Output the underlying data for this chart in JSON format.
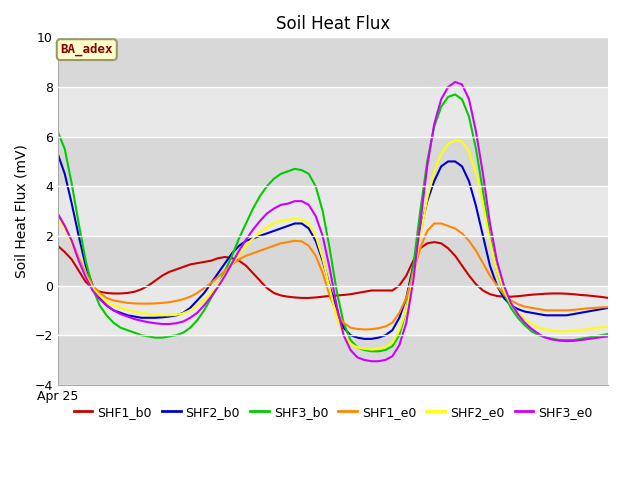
{
  "title": "Soil Heat Flux",
  "ylabel": "Soil Heat Flux (mV)",
  "xlabel": "Apr 25",
  "ylim": [
    -4,
    10
  ],
  "annotation_text": "BA_adex",
  "annotation_bg": "#ffffcc",
  "annotation_border": "#999966",
  "series": {
    "SHF1_b0": {
      "color": "#cc0000",
      "values": [
        1.6,
        1.35,
        1.05,
        0.6,
        0.15,
        -0.1,
        -0.25,
        -0.3,
        -0.32,
        -0.32,
        -0.3,
        -0.25,
        -0.15,
        0.0,
        0.2,
        0.4,
        0.55,
        0.65,
        0.75,
        0.85,
        0.9,
        0.95,
        1.0,
        1.1,
        1.15,
        1.1,
        1.0,
        0.8,
        0.5,
        0.2,
        -0.1,
        -0.3,
        -0.4,
        -0.45,
        -0.48,
        -0.5,
        -0.5,
        -0.48,
        -0.45,
        -0.42,
        -0.4,
        -0.38,
        -0.35,
        -0.3,
        -0.25,
        -0.2,
        -0.2,
        -0.2,
        -0.2,
        0.0,
        0.4,
        1.0,
        1.5,
        1.7,
        1.75,
        1.7,
        1.5,
        1.2,
        0.8,
        0.4,
        0.05,
        -0.2,
        -0.35,
        -0.42,
        -0.45,
        -0.45,
        -0.43,
        -0.4,
        -0.37,
        -0.35,
        -0.33,
        -0.32,
        -0.32,
        -0.33,
        -0.35,
        -0.38,
        -0.4,
        -0.43,
        -0.46,
        -0.5
      ]
    },
    "SHF2_b0": {
      "color": "#0000cc",
      "values": [
        5.3,
        4.5,
        3.3,
        2.0,
        0.8,
        0.0,
        -0.5,
        -0.8,
        -1.0,
        -1.1,
        -1.2,
        -1.25,
        -1.3,
        -1.3,
        -1.3,
        -1.28,
        -1.25,
        -1.2,
        -1.1,
        -0.9,
        -0.6,
        -0.3,
        0.1,
        0.5,
        0.9,
        1.3,
        1.6,
        1.8,
        1.9,
        2.0,
        2.1,
        2.2,
        2.3,
        2.4,
        2.5,
        2.5,
        2.3,
        1.8,
        1.0,
        0.0,
        -1.0,
        -1.7,
        -2.0,
        -2.1,
        -2.15,
        -2.15,
        -2.1,
        -2.0,
        -1.8,
        -1.3,
        -0.5,
        0.8,
        2.2,
        3.4,
        4.2,
        4.8,
        5.0,
        5.0,
        4.8,
        4.2,
        3.2,
        2.0,
        0.8,
        0.0,
        -0.5,
        -0.8,
        -0.95,
        -1.05,
        -1.1,
        -1.15,
        -1.2,
        -1.2,
        -1.2,
        -1.2,
        -1.15,
        -1.1,
        -1.05,
        -1.0,
        -0.95,
        -0.9
      ]
    },
    "SHF3_b0": {
      "color": "#00cc00",
      "values": [
        6.2,
        5.5,
        4.1,
        2.5,
        1.0,
        -0.1,
        -0.8,
        -1.2,
        -1.5,
        -1.7,
        -1.8,
        -1.9,
        -2.0,
        -2.05,
        -2.1,
        -2.1,
        -2.05,
        -2.0,
        -1.9,
        -1.7,
        -1.4,
        -1.0,
        -0.5,
        0.0,
        0.6,
        1.2,
        1.9,
        2.5,
        3.1,
        3.6,
        4.0,
        4.3,
        4.5,
        4.6,
        4.7,
        4.65,
        4.5,
        4.0,
        3.0,
        1.5,
        -0.2,
        -1.5,
        -2.2,
        -2.5,
        -2.6,
        -2.65,
        -2.65,
        -2.6,
        -2.45,
        -2.0,
        -1.0,
        0.8,
        3.0,
        5.0,
        6.4,
        7.2,
        7.6,
        7.7,
        7.5,
        6.8,
        5.5,
        3.8,
        2.0,
        0.6,
        -0.3,
        -0.9,
        -1.3,
        -1.6,
        -1.85,
        -2.0,
        -2.1,
        -2.15,
        -2.2,
        -2.2,
        -2.2,
        -2.15,
        -2.1,
        -2.05,
        -2.0,
        -1.95
      ]
    },
    "SHF1_e0": {
      "color": "#ff8800",
      "values": [
        2.8,
        2.4,
        1.8,
        1.1,
        0.5,
        0.0,
        -0.3,
        -0.5,
        -0.6,
        -0.65,
        -0.7,
        -0.72,
        -0.73,
        -0.73,
        -0.72,
        -0.7,
        -0.67,
        -0.62,
        -0.55,
        -0.45,
        -0.3,
        -0.1,
        0.1,
        0.35,
        0.6,
        0.85,
        1.05,
        1.2,
        1.3,
        1.4,
        1.5,
        1.6,
        1.7,
        1.75,
        1.8,
        1.78,
        1.6,
        1.2,
        0.5,
        -0.4,
        -1.1,
        -1.5,
        -1.7,
        -1.75,
        -1.77,
        -1.76,
        -1.72,
        -1.65,
        -1.5,
        -1.1,
        -0.5,
        0.5,
        1.5,
        2.2,
        2.5,
        2.5,
        2.4,
        2.3,
        2.1,
        1.8,
        1.4,
        0.9,
        0.4,
        0.0,
        -0.35,
        -0.6,
        -0.75,
        -0.85,
        -0.9,
        -0.95,
        -1.0,
        -1.0,
        -1.0,
        -1.0,
        -0.98,
        -0.95,
        -0.92,
        -0.9,
        -0.88,
        -0.87
      ]
    },
    "SHF2_e0": {
      "color": "#ffff00",
      "values": [
        2.7,
        2.3,
        1.7,
        1.0,
        0.4,
        -0.1,
        -0.4,
        -0.65,
        -0.8,
        -0.9,
        -0.98,
        -1.05,
        -1.1,
        -1.15,
        -1.18,
        -1.2,
        -1.2,
        -1.18,
        -1.12,
        -1.0,
        -0.82,
        -0.6,
        -0.3,
        0.05,
        0.45,
        0.85,
        1.25,
        1.6,
        1.9,
        2.15,
        2.35,
        2.5,
        2.6,
        2.65,
        2.7,
        2.65,
        2.5,
        2.0,
        1.1,
        -0.1,
        -1.3,
        -2.0,
        -2.35,
        -2.5,
        -2.55,
        -2.58,
        -2.55,
        -2.48,
        -2.3,
        -1.8,
        -1.0,
        0.3,
        2.0,
        3.5,
        4.6,
        5.3,
        5.7,
        5.85,
        5.8,
        5.4,
        4.5,
        3.3,
        1.8,
        0.6,
        -0.2,
        -0.75,
        -1.1,
        -1.35,
        -1.55,
        -1.7,
        -1.78,
        -1.83,
        -1.85,
        -1.85,
        -1.83,
        -1.8,
        -1.76,
        -1.72,
        -1.68,
        -1.65
      ]
    },
    "SHF3_e0": {
      "color": "#cc00ff",
      "values": [
        2.9,
        2.4,
        1.8,
        1.0,
        0.35,
        -0.2,
        -0.55,
        -0.8,
        -1.0,
        -1.15,
        -1.25,
        -1.35,
        -1.42,
        -1.48,
        -1.52,
        -1.55,
        -1.55,
        -1.52,
        -1.45,
        -1.3,
        -1.1,
        -0.8,
        -0.45,
        -0.05,
        0.4,
        0.9,
        1.4,
        1.85,
        2.25,
        2.6,
        2.9,
        3.1,
        3.25,
        3.3,
        3.4,
        3.4,
        3.25,
        2.8,
        2.0,
        0.7,
        -0.8,
        -2.0,
        -2.6,
        -2.9,
        -3.0,
        -3.05,
        -3.05,
        -3.0,
        -2.85,
        -2.4,
        -1.5,
        0.2,
        2.5,
        4.8,
        6.5,
        7.5,
        8.0,
        8.2,
        8.1,
        7.5,
        6.2,
        4.5,
        2.5,
        1.0,
        0.0,
        -0.7,
        -1.15,
        -1.5,
        -1.75,
        -1.95,
        -2.1,
        -2.18,
        -2.22,
        -2.24,
        -2.23,
        -2.2,
        -2.16,
        -2.12,
        -2.08,
        -2.05
      ]
    }
  },
  "legend_order": [
    "SHF1_b0",
    "SHF2_b0",
    "SHF3_b0",
    "SHF1_e0",
    "SHF2_e0",
    "SHF3_e0"
  ],
  "yticks": [
    -4,
    -2,
    0,
    2,
    4,
    6,
    8,
    10
  ],
  "band_colors": [
    "#d8d8d8",
    "#e8e8e8"
  ],
  "title_fontsize": 12,
  "label_fontsize": 10,
  "tick_fontsize": 9,
  "legend_fontsize": 9,
  "linewidth": 1.5
}
